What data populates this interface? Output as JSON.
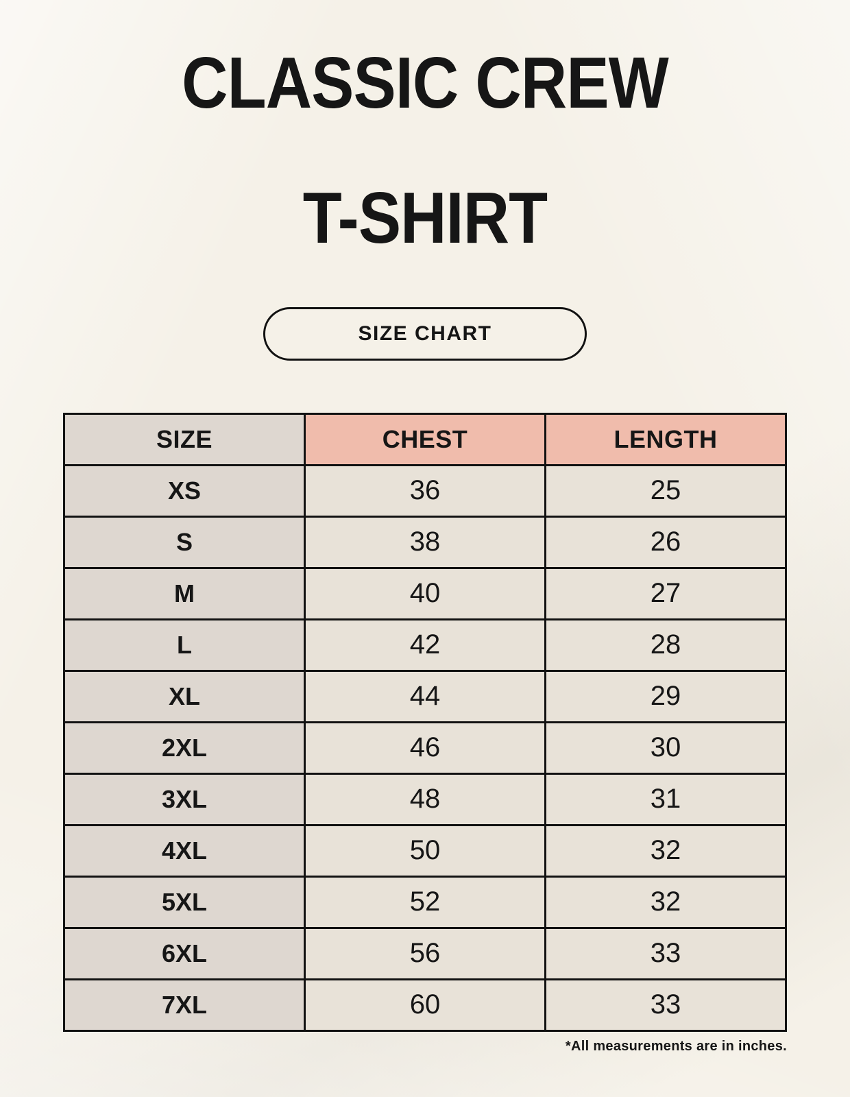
{
  "header": {
    "title_lines": [
      "CLASSIC CREW",
      "T-SHIRT"
    ],
    "badge_label": "SIZE CHART"
  },
  "table": {
    "columns": [
      "SIZE",
      "CHEST",
      "LENGTH"
    ],
    "rows": [
      {
        "size": "XS",
        "chest": "36",
        "length": "25"
      },
      {
        "size": "S",
        "chest": "38",
        "length": "26"
      },
      {
        "size": "M",
        "chest": "40",
        "length": "27"
      },
      {
        "size": "L",
        "chest": "42",
        "length": "28"
      },
      {
        "size": "XL",
        "chest": "44",
        "length": "29"
      },
      {
        "size": "2XL",
        "chest": "46",
        "length": "30"
      },
      {
        "size": "3XL",
        "chest": "48",
        "length": "31"
      },
      {
        "size": "4XL",
        "chest": "50",
        "length": "32"
      },
      {
        "size": "5XL",
        "chest": "52",
        "length": "32"
      },
      {
        "size": "6XL",
        "chest": "56",
        "length": "33"
      },
      {
        "size": "7XL",
        "chest": "60",
        "length": "33"
      }
    ]
  },
  "footnote": "*All measurements are in inches.",
  "colors": {
    "page_bg": "#f5f1e8",
    "accent_header_bg": "#f0bcac",
    "size_column_bg": "#ded7d0",
    "value_cell_bg": "#e8e2d8",
    "table_border": "#121212",
    "text": "#161616"
  }
}
